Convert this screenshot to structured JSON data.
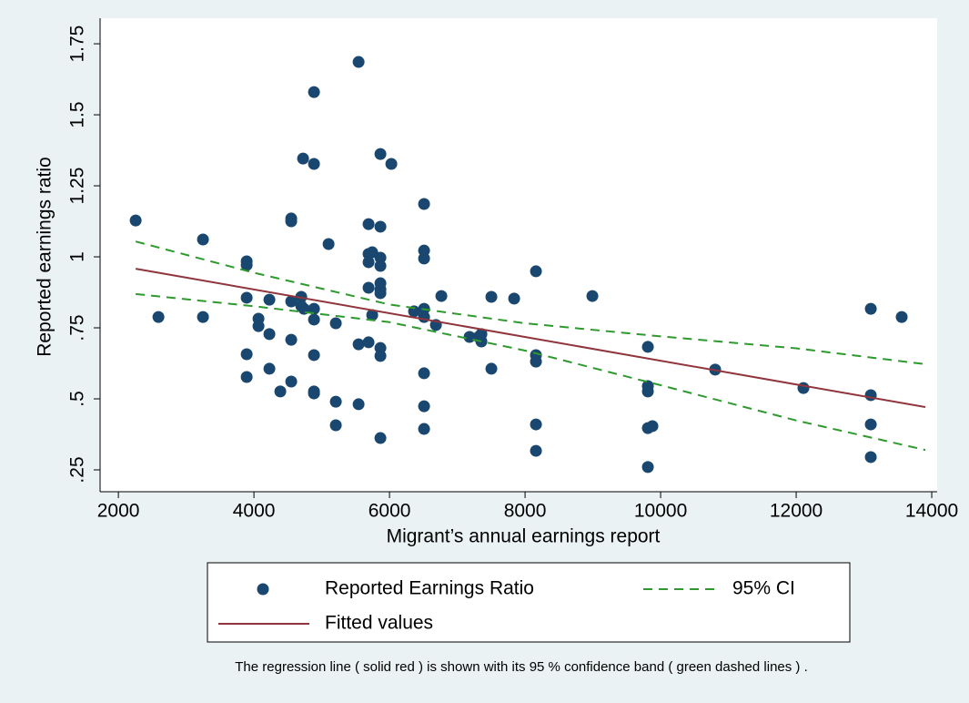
{
  "chart_data": {
    "type": "scatter",
    "xlabel": "Migrant’s annual earnings report",
    "ylabel": "Reported earnings ratio",
    "note": "The regression line ( solid red ) is shown with its 95 % confidence band ( green dashed lines ) .",
    "xlim": [
      1730,
      14080
    ],
    "ylim": [
      0.173,
      1.84
    ],
    "xticks": [
      2000,
      4000,
      6000,
      8000,
      10000,
      12000,
      14000
    ],
    "yticks": [
      {
        "value": 0.25,
        "label": ".25"
      },
      {
        "value": 0.5,
        "label": ".5"
      },
      {
        "value": 0.75,
        "label": ".75"
      },
      1,
      1.25,
      1.5,
      1.75
    ],
    "grid": false,
    "legend": "bottom",
    "series": [
      {
        "name": "Reported Earnings Ratio",
        "type": "scatter",
        "color": "#1a476f",
        "x": [
          2255,
          2591,
          3248,
          3248,
          3893,
          3893,
          3893,
          3893,
          3893,
          4067,
          4067,
          4228,
          4228,
          4228,
          4389,
          4550,
          4550,
          4550,
          4550,
          4550,
          4698,
          4698,
          4725,
          4738,
          4886,
          4886,
          4886,
          4886,
          4886,
          4886,
          4886,
          5101,
          5208,
          5208,
          5208,
          5544,
          5544,
          5544,
          5691,
          5691,
          5691,
          5691,
          5691,
          5745,
          5745,
          5866,
          5866,
          5866,
          5866,
          5866,
          5866,
          5866,
          5866,
          5866,
          5866,
          6027,
          6362,
          6510,
          6510,
          6510,
          6510,
          6510,
          6510,
          6510,
          6510,
          6685,
          6765,
          7181,
          7315,
          7356,
          7356,
          7503,
          7503,
          7839,
          8161,
          8161,
          8161,
          8161,
          8161,
          8993,
          9812,
          9812,
          9812,
          9812,
          9879,
          9812,
          10805,
          12107,
          13101,
          13101,
          13101,
          13101,
          13557
        ],
        "values": [
          1.128,
          0.788,
          1.061,
          0.788,
          0.984,
          0.971,
          0.856,
          0.657,
          0.577,
          0.782,
          0.756,
          0.849,
          0.728,
          0.606,
          0.526,
          1.135,
          1.125,
          0.843,
          0.708,
          0.561,
          0.859,
          0.827,
          1.346,
          0.817,
          1.58,
          1.327,
          0.817,
          0.779,
          0.654,
          0.526,
          0.519,
          1.045,
          0.766,
          0.49,
          0.407,
          1.686,
          0.692,
          0.481,
          1.115,
          0.981,
          1.01,
          0.891,
          0.699,
          1.016,
          0.795,
          0.997,
          1.106,
          1.362,
          0.968,
          0.907,
          0.885,
          0.872,
          0.679,
          0.651,
          0.362,
          1.327,
          0.808,
          1.186,
          1.022,
          0.994,
          0.817,
          0.788,
          0.59,
          0.474,
          0.394,
          0.76,
          0.862,
          0.718,
          0.718,
          0.728,
          0.702,
          0.859,
          0.606,
          0.853,
          0.949,
          0.654,
          0.631,
          0.41,
          0.317,
          0.862,
          0.683,
          0.545,
          0.526,
          0.397,
          0.404,
          0.26,
          0.603,
          0.538,
          0.817,
          0.513,
          0.41,
          0.295,
          0.788
        ]
      },
      {
        "name": "Fitted values",
        "type": "line",
        "color": "#90353b",
        "x": [
          2255,
          13906
        ],
        "values": [
          0.958,
          0.471
        ]
      },
      {
        "name": "95% CI",
        "type": "band-lines",
        "color": "#2e9a2e",
        "x": [
          2255,
          4000,
          6000,
          8000,
          10000,
          12000,
          13906
        ],
        "values": [
          1.054,
          0.944,
          0.832,
          0.766,
          0.72,
          0.678,
          0.622
        ],
        "lower": [
          0.869,
          0.826,
          0.77,
          0.67,
          0.548,
          0.424,
          0.32
        ]
      }
    ]
  }
}
